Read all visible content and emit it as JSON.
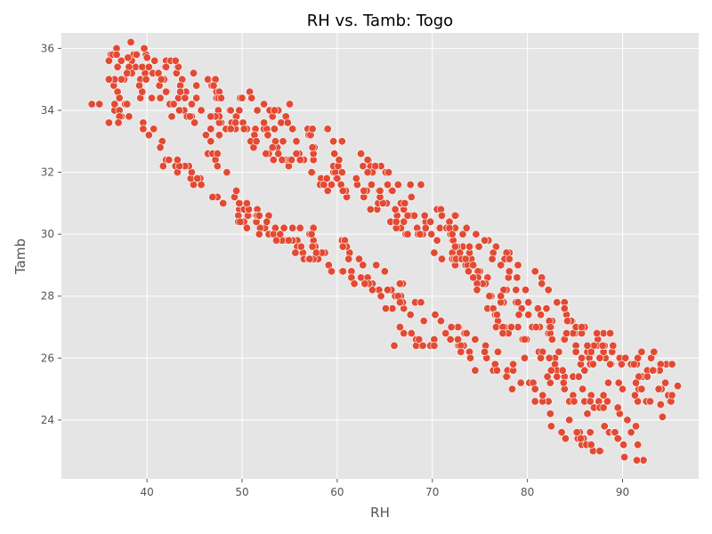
{
  "chart_data": {
    "type": "scatter",
    "title": "RH vs. Tamb: Togo",
    "xlabel": "RH",
    "ylabel": "Tamb",
    "xlim": [
      31,
      98
    ],
    "ylim": [
      22.1,
      36.5
    ],
    "xticks": [
      40,
      50,
      60,
      70,
      80,
      90
    ],
    "yticks": [
      24,
      26,
      28,
      30,
      32,
      34,
      36
    ],
    "grid": true,
    "colors": {
      "background": "#e5e5e5",
      "grid": "#ffffff",
      "marker": "#e24a33",
      "marker_edge": "#ffffff"
    },
    "bands": [
      {
        "points": [
          [
            36,
            35.6
          ],
          [
            42,
            34.8
          ],
          [
            50,
            33.8
          ],
          [
            60,
            32.2
          ],
          [
            70,
            30.3
          ],
          [
            80,
            28.0
          ],
          [
            85,
            26.8
          ],
          [
            90,
            25.6
          ],
          [
            95,
            25.1
          ]
        ],
        "spread": 1.8,
        "density": 7
      },
      {
        "points": [
          [
            36,
            34.3
          ],
          [
            40,
            33.2
          ],
          [
            43,
            32.2
          ],
          [
            46,
            31.5
          ],
          [
            50,
            30.6
          ],
          [
            55,
            30.0
          ],
          [
            60,
            29.6
          ],
          [
            65,
            28.4
          ],
          [
            70,
            27.4
          ],
          [
            75,
            26.3
          ],
          [
            80,
            25.0
          ],
          [
            83,
            23.9
          ],
          [
            86,
            23.5
          ],
          [
            88,
            23.2
          ]
        ],
        "spread": 0.8,
        "density": 3
      },
      {
        "points": [
          [
            44,
            34.2
          ],
          [
            47,
            32.6
          ],
          [
            50,
            31.0
          ],
          [
            53,
            30.1
          ],
          [
            57,
            29.3
          ],
          [
            60,
            28.8
          ],
          [
            62,
            28.4
          ],
          [
            64,
            28.2
          ],
          [
            66,
            27.3
          ],
          [
            68,
            26.6
          ],
          [
            70,
            26.5
          ]
        ],
        "spread": 0.45,
        "density": 2.2
      },
      {
        "points": [
          [
            72,
            29.8
          ],
          [
            76,
            27.8
          ],
          [
            80,
            26.5
          ],
          [
            84,
            25.2
          ],
          [
            88,
            24.2
          ],
          [
            92,
            23.2
          ]
        ],
        "spread": 1.2,
        "density": 4
      }
    ],
    "extra_points": [
      [
        34.2,
        34.2
      ],
      [
        35.0,
        34.2
      ],
      [
        36.0,
        33.6
      ],
      [
        37.0,
        33.6
      ],
      [
        36.4,
        35.8
      ],
      [
        36.8,
        35.8
      ],
      [
        95.8,
        25.1
      ],
      [
        94.2,
        24.1
      ],
      [
        94.0,
        24.5
      ],
      [
        92.2,
        22.7
      ],
      [
        91.5,
        22.7
      ],
      [
        90.2,
        22.8
      ],
      [
        73.0,
        26.4
      ],
      [
        73.0,
        26.2
      ],
      [
        74.0,
        26.0
      ],
      [
        74.5,
        25.6
      ],
      [
        66.0,
        26.4
      ],
      [
        68.6,
        26.6
      ],
      [
        70.2,
        26.4
      ],
      [
        69.0,
        26.4
      ],
      [
        75.5,
        29.8
      ],
      [
        68.8,
        31.6
      ],
      [
        64.0,
        32.2
      ],
      [
        55.0,
        34.2
      ],
      [
        59.0,
        33.4
      ],
      [
        47.0,
        34.8
      ],
      [
        43.0,
        35.6
      ],
      [
        40.0,
        35.7
      ],
      [
        38.0,
        35.7
      ]
    ]
  }
}
